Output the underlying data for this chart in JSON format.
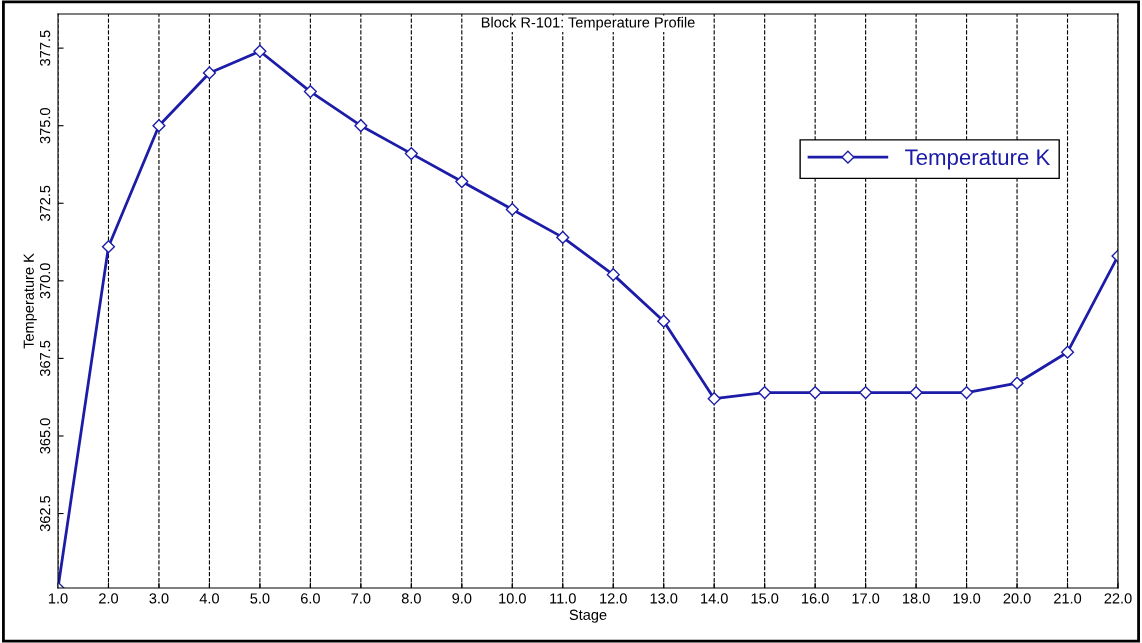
{
  "chart_data": {
    "type": "line",
    "title": "Block R-101: Temperature Profile",
    "xlabel": "Stage",
    "ylabel": "Temperature K",
    "x": [
      1,
      2,
      3,
      4,
      5,
      6,
      7,
      8,
      9,
      10,
      11,
      12,
      13,
      14,
      15,
      16,
      17,
      18,
      19,
      20,
      21,
      22
    ],
    "series": [
      {
        "name": "Temperature K",
        "color": "#1c1ca8",
        "values": [
          360.1,
          371.1,
          375.0,
          376.7,
          377.4,
          376.1,
          375.0,
          374.1,
          373.2,
          372.3,
          371.4,
          370.2,
          368.7,
          366.2,
          366.4,
          366.4,
          366.4,
          366.4,
          366.4,
          366.7,
          367.7,
          370.8
        ]
      }
    ],
    "xlim": [
      1,
      22
    ],
    "xticks": [
      {
        "value": 1,
        "label": "1.0"
      },
      {
        "value": 2,
        "label": "2.0"
      },
      {
        "value": 3,
        "label": "3.0"
      },
      {
        "value": 4,
        "label": "4.0"
      },
      {
        "value": 5,
        "label": "5.0"
      },
      {
        "value": 6,
        "label": "6.0"
      },
      {
        "value": 7,
        "label": "7.0"
      },
      {
        "value": 8,
        "label": "8.0"
      },
      {
        "value": 9,
        "label": "9.0"
      },
      {
        "value": 10,
        "label": "10.0"
      },
      {
        "value": 11,
        "label": "11.0"
      },
      {
        "value": 12,
        "label": "12.0"
      },
      {
        "value": 13,
        "label": "13.0"
      },
      {
        "value": 14,
        "label": "14.0"
      },
      {
        "value": 15,
        "label": "15.0"
      },
      {
        "value": 16,
        "label": "16.0"
      },
      {
        "value": 17,
        "label": "17.0"
      },
      {
        "value": 18,
        "label": "18.0"
      },
      {
        "value": 19,
        "label": "19.0"
      },
      {
        "value": 20,
        "label": "20.0"
      },
      {
        "value": 21,
        "label": "21.0"
      },
      {
        "value": 22,
        "label": "22.0"
      }
    ],
    "ylim": [
      360.1,
      378.6
    ],
    "yticks": [
      362.5,
      {
        "value": 365,
        "label": "365.0"
      },
      367.5,
      {
        "value": 370,
        "label": "370.0"
      },
      372.5,
      {
        "value": 375,
        "label": "375.0"
      },
      377.5
    ],
    "grid": "x",
    "legend": "top right",
    "marker": "diamond",
    "line_style": "solid"
  }
}
